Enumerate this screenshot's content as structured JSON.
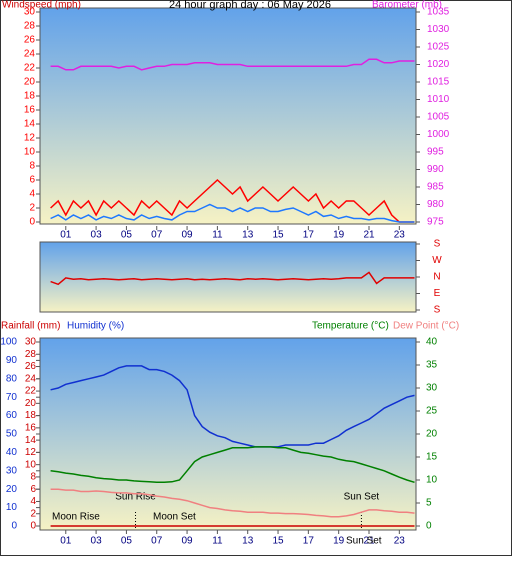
{
  "chart_data": [
    {
      "type": "line",
      "title": "24 hour graph day : 06 May 2026",
      "ylabel": "Windspeed (mph)",
      "x": [
        0,
        0.5,
        1,
        1.5,
        2,
        2.5,
        3,
        3.5,
        4,
        4.5,
        5,
        5.5,
        6,
        6.5,
        7,
        7.5,
        8,
        8.5,
        9,
        9.5,
        10,
        10.5,
        11,
        11.5,
        12,
        12.5,
        13,
        13.5,
        14,
        14.5,
        15,
        15.5,
        16,
        16.5,
        17,
        17.5,
        18,
        18.5,
        19,
        19.5,
        20,
        20.5,
        21,
        21.5,
        22,
        22.5,
        23,
        23.5,
        24
      ],
      "xlim": [
        -0.7,
        24.1
      ],
      "xticks": [
        {
          "value": 1,
          "label": "01"
        },
        {
          "value": 3,
          "label": "03"
        },
        {
          "value": 5,
          "label": "05"
        },
        {
          "value": 7,
          "label": "07"
        },
        {
          "value": 9,
          "label": "09"
        },
        11,
        13,
        15,
        17,
        19,
        21,
        23
      ],
      "ylim": [
        0,
        30
      ],
      "yticks": [
        0,
        2,
        4,
        6,
        8,
        10,
        12,
        14,
        16,
        18,
        20,
        22,
        24,
        26,
        28,
        30
      ],
      "y2lim": [
        975,
        1035
      ],
      "y2ticks": [
        975,
        980,
        985,
        990,
        995,
        1000,
        1005,
        1010,
        1015,
        1020,
        1025,
        1030,
        1035
      ],
      "series": [
        {
          "color": "#ff0000",
          "values": [
            2,
            3,
            1,
            3,
            2,
            3,
            1,
            3,
            2,
            3,
            2,
            1,
            3,
            2,
            3,
            2,
            1,
            3,
            2,
            3,
            4,
            5,
            6,
            5,
            4,
            5,
            3,
            4,
            5,
            4,
            3,
            4,
            5,
            4,
            3,
            4,
            2,
            3,
            2,
            3,
            3,
            2,
            1,
            2,
            3,
            1,
            0,
            0,
            0
          ]
        },
        {
          "color": "#1e78ff",
          "values": [
            0.5,
            1,
            0.3,
            1,
            0.5,
            1,
            0.3,
            0.8,
            0.5,
            1,
            0.5,
            0.3,
            1,
            0.5,
            0.8,
            0.5,
            0.3,
            1,
            1.5,
            1.5,
            2,
            2.5,
            2,
            2,
            1.5,
            2,
            1.5,
            2,
            2,
            1.5,
            1.5,
            1.8,
            2,
            1.5,
            1,
            1.5,
            0.8,
            1,
            0.5,
            0.8,
            0.5,
            0.5,
            0.3,
            0.5,
            0.5,
            0.2,
            0,
            0,
            0
          ]
        },
        {
          "name": "Barometer (mb)",
          "color": "#e020e0",
          "axis": "y2",
          "values": [
            1019.5,
            1019.5,
            1018.5,
            1018.5,
            1019.5,
            1019.5,
            1019.5,
            1019.5,
            1019.5,
            1019,
            1019.5,
            1019.5,
            1018.5,
            1019,
            1019.5,
            1019.5,
            1020,
            1020,
            1020,
            1020.5,
            1020.5,
            1020.5,
            1020,
            1020,
            1020,
            1020,
            1019.5,
            1019.5,
            1019.5,
            1019.5,
            1019.5,
            1019.5,
            1019.5,
            1019.5,
            1019.5,
            1019.5,
            1019.5,
            1019.5,
            1019.5,
            1019.5,
            1020,
            1020,
            1021.5,
            1021.5,
            1020.5,
            1020.5,
            1021,
            1021,
            1021
          ]
        }
      ]
    },
    {
      "type": "line",
      "x": [
        0,
        0.5,
        1,
        1.5,
        2,
        2.5,
        3,
        3.5,
        4,
        4.5,
        5,
        5.5,
        6,
        6.5,
        7,
        7.5,
        8,
        8.5,
        9,
        9.5,
        10,
        10.5,
        11,
        11.5,
        12,
        12.5,
        13,
        13.5,
        14,
        14.5,
        15,
        15.5,
        16,
        16.5,
        17,
        17.5,
        18,
        18.5,
        19,
        19.5,
        20,
        20.5,
        21,
        21.5,
        22,
        22.5,
        23,
        23.5,
        24
      ],
      "xlim": [
        -0.7,
        24.1
      ],
      "ylim": [
        180,
        -180
      ],
      "yticks": [
        {
          "value": 180,
          "label": "S"
        },
        {
          "value": 90,
          "label": "E"
        },
        {
          "value": 0,
          "label": "N"
        },
        {
          "value": -90,
          "label": "W"
        },
        {
          "value": -180,
          "label": "S"
        }
      ],
      "series": [
        {
          "color": "#e00000",
          "values": [
            25,
            40,
            5,
            12,
            10,
            15,
            12,
            10,
            12,
            15,
            12,
            10,
            15,
            12,
            10,
            12,
            15,
            12,
            10,
            15,
            12,
            15,
            12,
            10,
            12,
            15,
            10,
            12,
            10,
            12,
            15,
            12,
            10,
            12,
            15,
            12,
            10,
            12,
            10,
            5,
            5,
            5,
            -25,
            35,
            5,
            5,
            5,
            5,
            5
          ]
        }
      ]
    },
    {
      "type": "line",
      "x": [
        0,
        0.5,
        1,
        1.5,
        2,
        2.5,
        3,
        3.5,
        4,
        4.5,
        5,
        5.5,
        6,
        6.5,
        7,
        7.5,
        8,
        8.5,
        9,
        9.5,
        10,
        10.5,
        11,
        11.5,
        12,
        12.5,
        13,
        13.5,
        14,
        14.5,
        15,
        15.5,
        16,
        16.5,
        17,
        17.5,
        18,
        18.5,
        19,
        19.5,
        20,
        20.5,
        21,
        21.5,
        22,
        22.5,
        23,
        23.5,
        24
      ],
      "xlim": [
        -0.7,
        24.1
      ],
      "xticks": [
        {
          "value": 1,
          "label": "01"
        },
        {
          "value": 3,
          "label": "03"
        },
        {
          "value": 5,
          "label": "05"
        },
        {
          "value": 7,
          "label": "07"
        },
        {
          "value": 9,
          "label": "09"
        },
        11,
        13,
        15,
        17,
        19,
        21,
        23
      ],
      "ylim": [
        0,
        100
      ],
      "yticks": [
        0,
        10,
        20,
        30,
        40,
        50,
        60,
        70,
        80,
        90,
        100
      ],
      "y2lim": [
        0,
        30
      ],
      "y2ticks": [
        0,
        2,
        4,
        6,
        8,
        10,
        12,
        14,
        16,
        18,
        20,
        22,
        24,
        26,
        28,
        30
      ],
      "y3lim": [
        0,
        40
      ],
      "y3ticks": [
        0,
        5,
        10,
        15,
        20,
        25,
        30,
        35,
        40
      ],
      "series": [
        {
          "name": "Rainfall (mm)",
          "color": "#cc0000",
          "axis": "y2",
          "values": [
            0,
            0,
            0,
            0,
            0,
            0,
            0,
            0,
            0,
            0,
            0,
            0,
            0,
            0,
            0,
            0,
            0,
            0,
            0,
            0,
            0,
            0,
            0,
            0,
            0,
            0,
            0,
            0,
            0,
            0,
            0,
            0,
            0,
            0,
            0,
            0,
            0,
            0,
            0,
            0,
            0,
            0,
            0,
            0,
            0,
            0,
            0,
            0,
            0
          ]
        },
        {
          "name": "Humidity (%)",
          "color": "#1030d0",
          "values": [
            74,
            75,
            77,
            78,
            79,
            80,
            81,
            82,
            84,
            86,
            87,
            87,
            87,
            85,
            85,
            84,
            82,
            79,
            74,
            60,
            54,
            51,
            49,
            48,
            46,
            45,
            44,
            43,
            43,
            43,
            43,
            44,
            44,
            44,
            44,
            45,
            45,
            47,
            49,
            52,
            54,
            56,
            58,
            61,
            64,
            66,
            68,
            70,
            71
          ]
        },
        {
          "name": "Temperature (°C)",
          "color": "#008000",
          "axis": "y3",
          "values": [
            12,
            11.8,
            11.5,
            11.3,
            11,
            10.8,
            10.5,
            10.3,
            10.2,
            10,
            10,
            9.8,
            9.7,
            9.6,
            9.5,
            9.5,
            9.6,
            10,
            12,
            14,
            15,
            15.5,
            16,
            16.5,
            17,
            17,
            17,
            17.2,
            17.2,
            17.2,
            17,
            17,
            16.5,
            16,
            15.8,
            15.5,
            15.2,
            15,
            14.5,
            14.2,
            14,
            13.5,
            13,
            12.5,
            12,
            11.3,
            10.6,
            10,
            9.5
          ]
        },
        {
          "name": "Dew Point (°C)",
          "color": "#f08080",
          "axis": "y3",
          "values": [
            8,
            8,
            7.8,
            7.8,
            7.5,
            7.5,
            7.6,
            7.5,
            7.3,
            7.2,
            7.2,
            7,
            7,
            6.8,
            6.5,
            6.3,
            6,
            5.8,
            5.5,
            5,
            4.5,
            4,
            3.8,
            3.5,
            3.3,
            3.2,
            3,
            3,
            3,
            2.8,
            2.8,
            2.7,
            2.7,
            2.6,
            2.5,
            2.3,
            2.2,
            2,
            2,
            2.2,
            2.5,
            3,
            3.5,
            3.5,
            3.3,
            3.2,
            3,
            3,
            2.8
          ]
        }
      ],
      "events": [
        {
          "label": "Sun Rise",
          "time": 5.6
        },
        {
          "label": "Sun Set",
          "time": 20.5
        }
      ],
      "annotations": [
        "Moon Rise",
        "Moon Set",
        "Sun Set"
      ]
    }
  ]
}
